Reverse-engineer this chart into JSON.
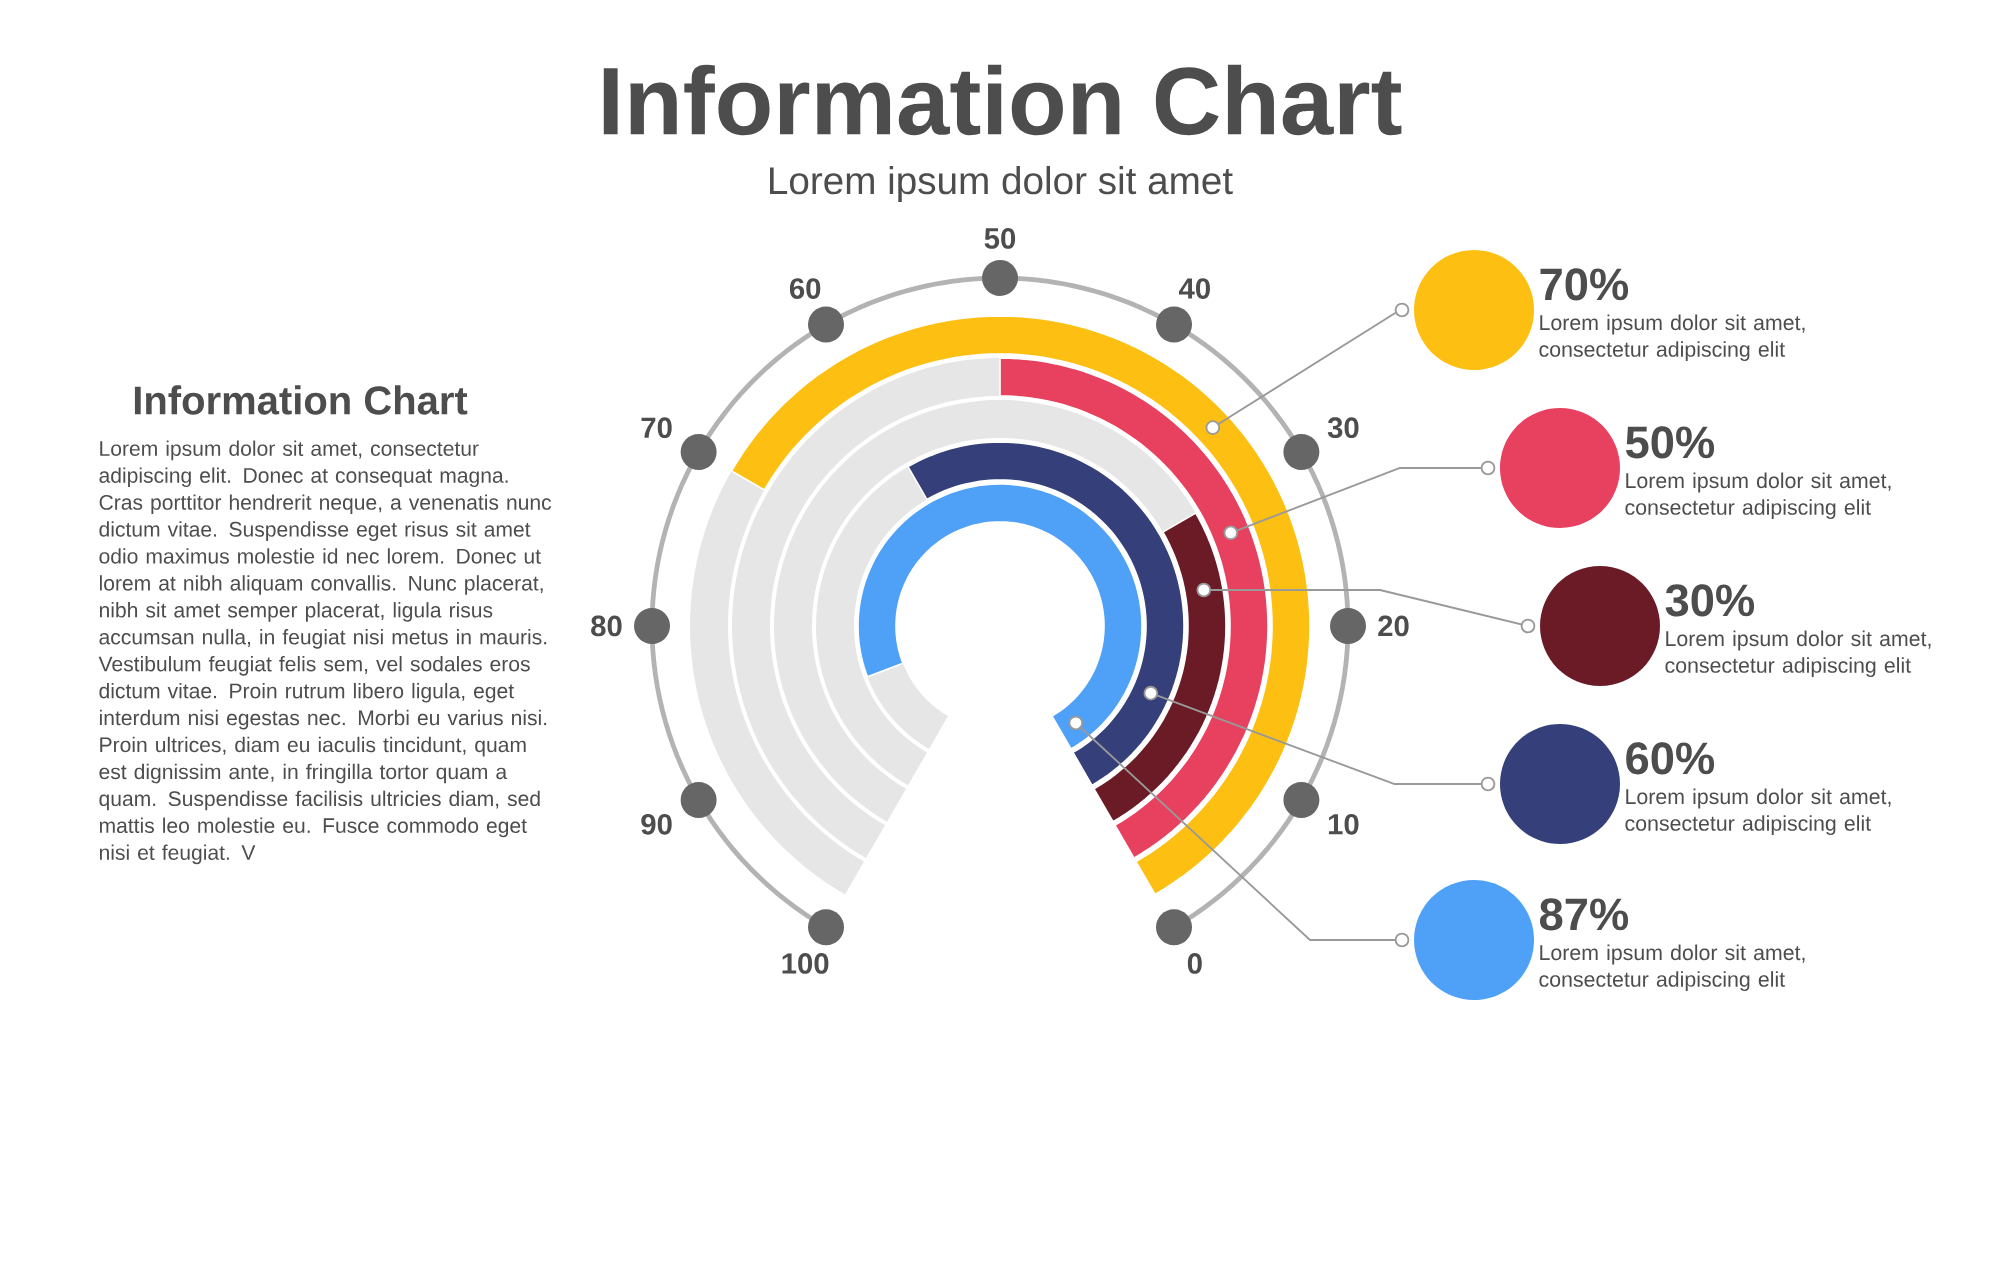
{
  "chart_data": {
    "type": "other",
    "title": "Information Chart",
    "subtitle": "Lorem ipsum dolor sit amet",
    "categories": [
      "Lorem ipsum dolor sit amet, consectetur adipiscing elit",
      "Lorem ipsum dolor sit amet, consectetur adipiscing elit",
      "Lorem ipsum dolor sit amet, consectetur adipiscing elit",
      "Lorem ipsum dolor sit amet, consectetur adipiscing elit",
      "Lorem ipsum dolor sit amet, consectetur adipiscing elit"
    ],
    "values": [
      70,
      50,
      30,
      60,
      87
    ],
    "value_labels": [
      "70%",
      "50%",
      "30%",
      "60%",
      "87%"
    ],
    "colors": [
      "#fdbf12",
      "#e8405f",
      "#6a1b26",
      "#353f79",
      "#4ea1f7"
    ],
    "annotations": [
      "0",
      "10",
      "20",
      "30",
      "40",
      "50",
      "60",
      "70",
      "80",
      "90",
      "100",
      "Information Chart",
      "Lorem ipsum dolor sit amet, consectetur adipiscing elit. Donec at consequat magna. Cras porttitor hendrerit neque, a venenatis nunc dictum vitae. Suspendisse eget risus sit amet odio maximus molestie id nec lorem. Donec ut lorem at nibh aliquam convallis. Nunc placerat, nibh sit amet semper placerat, ligula risus accumsan nulla, in feugiat nisi metus in mauris. Vestibulum feugiat felis sem, vel sodales eros dictum vitae. Proin rutrum libero ligula, eget interdum nisi egestas nec. Morbi eu varius nisi. Proin ultrices, diam eu iaculis tincidunt, quam est dignissim ante, in fringilla tortor quam a quam. Suspendisse facilisis ultricies diam, sed mattis leo molestie eu. Fusce commodo eget nisi et feugiat. V"
    ]
  }
}
